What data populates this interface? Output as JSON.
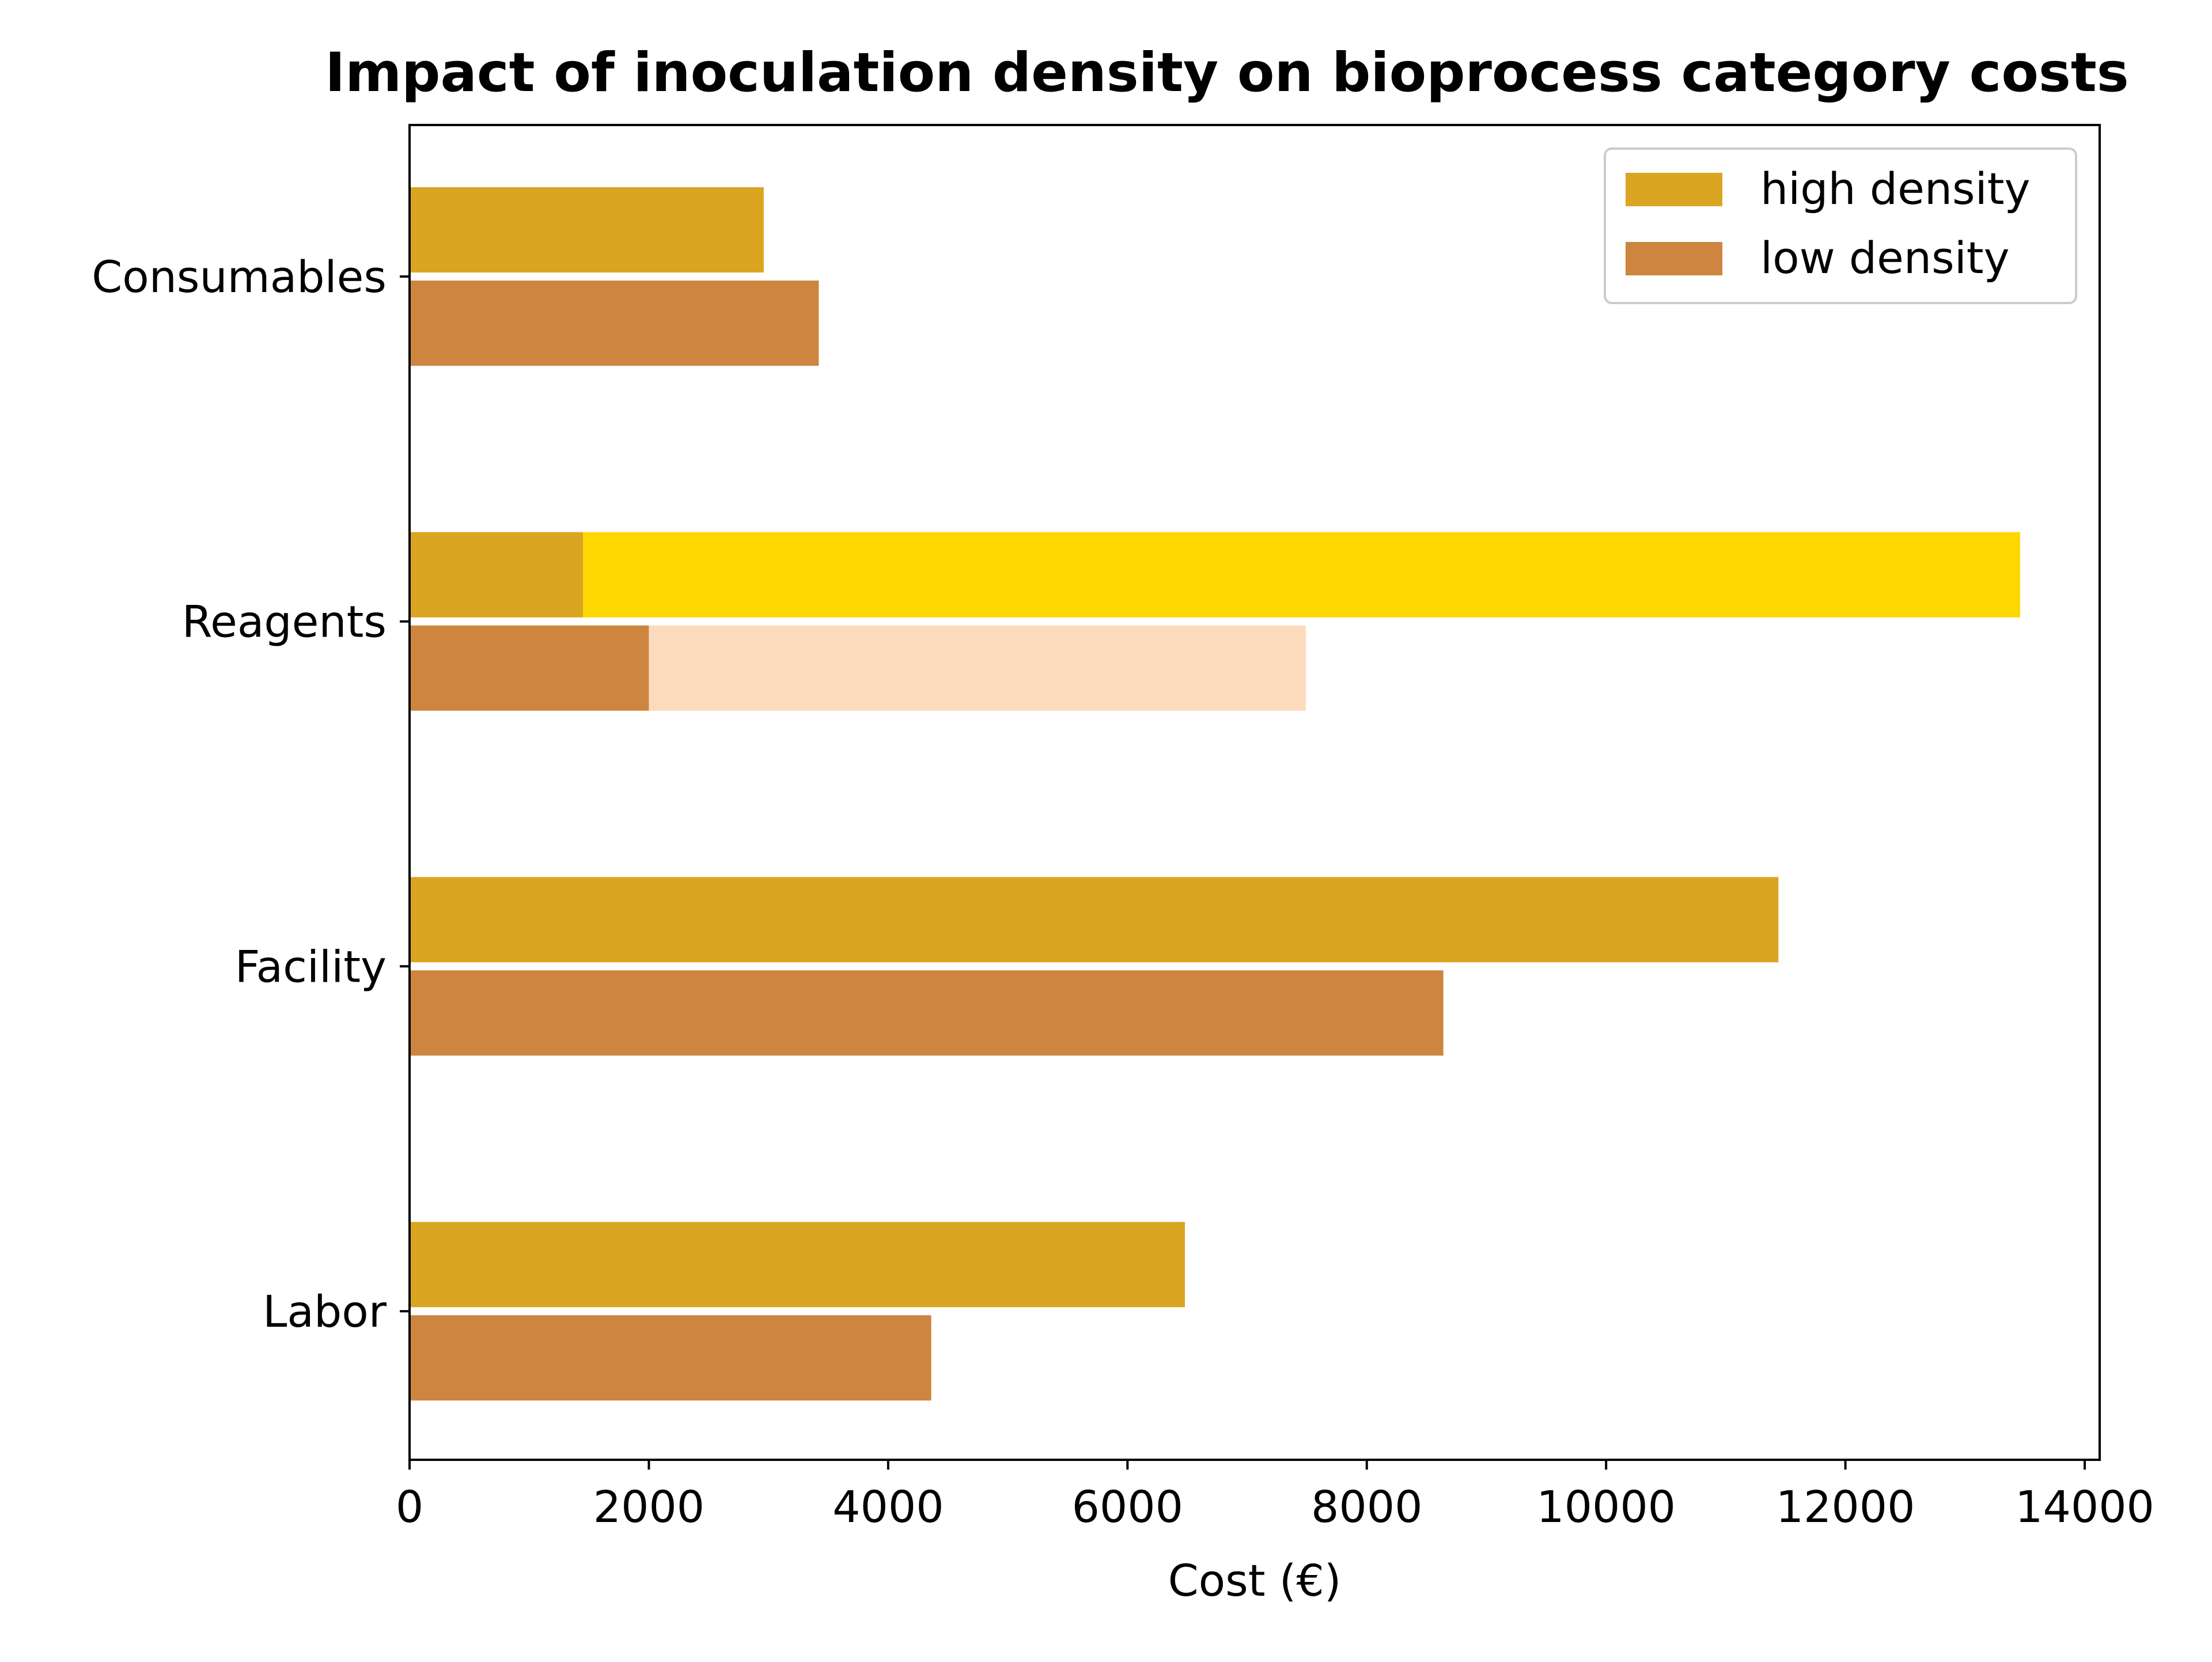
{
  "chart_data": {
    "type": "bar",
    "orientation": "horizontal",
    "title": "Impact of inoculation density on bioprocess category costs",
    "xlabel": "Cost (€)",
    "ylabel": "",
    "xlim": [
      0,
      14125
    ],
    "xticks": [
      "0",
      "2000",
      "4000",
      "6000",
      "8000",
      "10000",
      "12000",
      "14000"
    ],
    "categories": [
      "Consumables",
      "Reagents",
      "Facility",
      "Labor"
    ],
    "grid": false,
    "legend_position": "top-right",
    "series": [
      {
        "name": "high density",
        "color": "#DAA520",
        "values": [
          2960,
          1450,
          11440,
          6480
        ],
        "stacked_segments": [
          {
            "category": "Reagents",
            "start": 1450,
            "end": 13460,
            "color": "#FFD700"
          }
        ]
      },
      {
        "name": "low density",
        "color": "#CD853F",
        "values": [
          3420,
          2000,
          8640,
          4360
        ],
        "stacked_segments": [
          {
            "category": "Reagents",
            "start": 2000,
            "end": 7490,
            "color": "#FCDABC"
          }
        ]
      }
    ]
  }
}
